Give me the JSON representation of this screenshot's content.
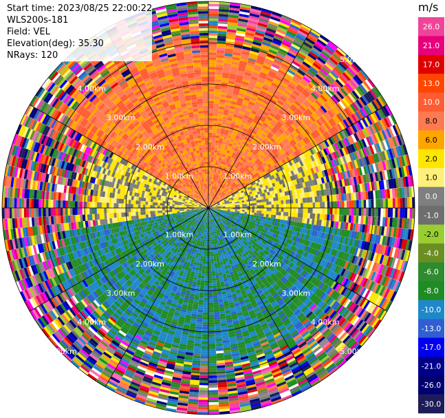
{
  "header": {
    "start_time": "Start time: 2023/08/25 22:00:22",
    "instrument": "WLS200s-181",
    "field": "Field: VEL",
    "elevation": "Elevation(deg): 35.30",
    "nrays": "NRays: 120"
  },
  "colorbar": {
    "unit": "m/s",
    "entries": [
      {
        "label": "26.0",
        "color": "#f0449a"
      },
      {
        "label": "21.0",
        "color": "#e8007a"
      },
      {
        "label": "17.0",
        "color": "#e00000"
      },
      {
        "label": "13.0",
        "color": "#ff4500"
      },
      {
        "label": "10.0",
        "color": "#ff5c33"
      },
      {
        "label": "8.0",
        "color": "#ff7a50"
      },
      {
        "label": "6.0",
        "color": "#ffa500"
      },
      {
        "label": "2.0",
        "color": "#ffe600"
      },
      {
        "label": "1.0",
        "color": "#fff07a"
      },
      {
        "label": "0.0",
        "color": "#7f7f7f"
      },
      {
        "label": "-1.0",
        "color": "#6e6e6e"
      },
      {
        "label": "-2.0",
        "color": "#9acd32"
      },
      {
        "label": "-4.0",
        "color": "#6b8e23"
      },
      {
        "label": "-6.0",
        "color": "#2e8b2e"
      },
      {
        "label": "-8.0",
        "color": "#1f8b24"
      },
      {
        "label": "-10.0",
        "color": "#1e88c8"
      },
      {
        "label": "-13.0",
        "color": "#2f5fd0"
      },
      {
        "label": "-17.0",
        "color": "#0000ee"
      },
      {
        "label": "-21.0",
        "color": "#00008b"
      },
      {
        "label": "-26.0",
        "color": "#000070"
      },
      {
        "label": "-30.0",
        "color": "#1c1c5a"
      }
    ]
  },
  "chart_data": {
    "type": "heatmap",
    "projection": "PPI polar",
    "field": "VEL",
    "units": "m/s",
    "n_rays": 120,
    "range_rings_km": [
      1.0,
      2.0,
      3.0,
      4.0,
      5.0
    ],
    "ring_labels": [
      "1.00km",
      "2.00km",
      "3.00km",
      "4.00km",
      "5.00km"
    ],
    "azimuth_lines_deg": [
      0,
      30,
      60,
      90,
      120,
      150,
      180,
      210,
      240,
      270,
      300,
      330
    ],
    "sectors": [
      {
        "azimuth_from_deg": -60,
        "azimuth_to_deg": 60,
        "max_valid_range_km": 4.0,
        "velocity_ms": 9.0,
        "notes": "positive velocity (orange/red) toward north"
      },
      {
        "azimuth_from_deg": 60,
        "azimuth_to_deg": 100,
        "max_valid_range_km": 3.0,
        "velocity_ms": 1.5,
        "notes": "near zero (yellow/grey)"
      },
      {
        "azimuth_from_deg": 100,
        "azimuth_to_deg": 260,
        "max_valid_range_km": 3.8,
        "velocity_ms": -8.0,
        "notes": "negative velocity (green/blue) toward south"
      },
      {
        "azimuth_from_deg": 260,
        "azimuth_to_deg": 300,
        "max_valid_range_km": 3.0,
        "velocity_ms": 1.5,
        "notes": "near zero (yellow/grey)"
      }
    ],
    "beyond_valid_range": "noisy random values (clutter) out to 5.0 km",
    "color_range_ms": [
      -30.0,
      26.0
    ]
  }
}
